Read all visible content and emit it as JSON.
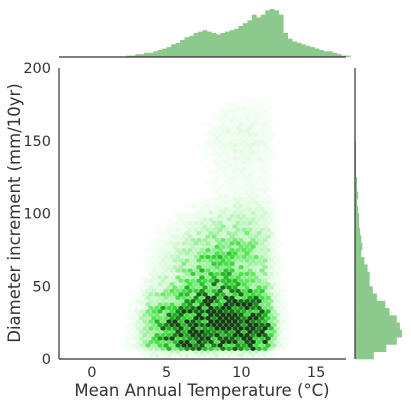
{
  "chart_data": {
    "type": "heatmap",
    "variant": "joint-hexbin-with-marginal-histograms",
    "xlabel": "Mean Annual Temperature (°C)",
    "ylabel": "Diameter increment (mm/10yr)",
    "xlim": [
      -2.2,
      17
    ],
    "ylim": [
      0,
      200
    ],
    "x_ticks": [
      0,
      5,
      10,
      15
    ],
    "y_ticks": [
      0,
      50,
      100,
      150,
      200
    ],
    "grid": false,
    "colors": {
      "hex_low": "#f2fff2",
      "hex_mid": "#22dd22",
      "hex_high": "#0f3f0f",
      "marginal_bar": "#8cc98c",
      "axis": "#333333"
    },
    "density_clusters": [
      {
        "x": 5.5,
        "y": 18,
        "weight": 1.0
      },
      {
        "x": 8.8,
        "y": 22,
        "weight": 0.85
      },
      {
        "x": 11.2,
        "y": 22,
        "weight": 0.95
      },
      {
        "x": 10.5,
        "y": 80,
        "weight": 0.45
      },
      {
        "x": 7.5,
        "y": 65,
        "weight": 0.5
      },
      {
        "x": 10.2,
        "y": 150,
        "weight": 0.2
      }
    ],
    "top_marginal": {
      "bin_start": 2.3,
      "bin_width": 0.3,
      "counts": [
        1,
        1,
        2,
        2,
        3,
        3,
        4,
        5,
        6,
        7,
        9,
        10,
        12,
        14,
        15,
        17,
        18,
        19,
        18,
        17,
        16,
        17,
        18,
        19,
        20,
        22,
        24,
        26,
        30,
        28,
        30,
        33,
        34,
        33,
        30,
        17,
        13,
        11,
        10,
        9,
        8,
        7,
        6,
        5,
        4,
        4,
        3,
        2,
        1,
        1
      ]
    },
    "right_marginal": {
      "bin_start": 0,
      "bin_width": 5,
      "counts": [
        18,
        30,
        40,
        45,
        43,
        40,
        33,
        29,
        21,
        17,
        14,
        14,
        12,
        9,
        6,
        7,
        6,
        5,
        4,
        4,
        3,
        2,
        3,
        2,
        2,
        1,
        1,
        1,
        1,
        1
      ]
    }
  }
}
